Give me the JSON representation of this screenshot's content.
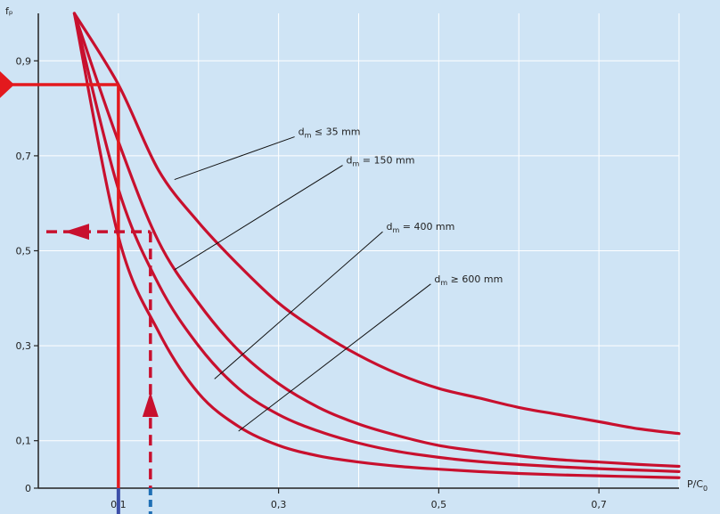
{
  "chart_data": {
    "type": "line",
    "ylabel": "fₚ",
    "xlabel": "P/C",
    "xlabel_sub": "0",
    "xlim": [
      0.0,
      0.8
    ],
    "ylim": [
      0.0,
      1.0
    ],
    "grid": true,
    "x_ticks": [
      {
        "value": 0.1,
        "label": "0,1"
      },
      {
        "value": 0.3,
        "label": "0,3"
      },
      {
        "value": 0.5,
        "label": "0,5"
      },
      {
        "value": 0.7,
        "label": "0,7"
      }
    ],
    "y_ticks": [
      {
        "value": 0.0,
        "label": "0"
      },
      {
        "value": 0.1,
        "label": "0,1"
      },
      {
        "value": 0.3,
        "label": "0,3"
      },
      {
        "value": 0.5,
        "label": "0,5"
      },
      {
        "value": 0.7,
        "label": "0,7"
      },
      {
        "value": 0.9,
        "label": "0,9"
      }
    ],
    "series": [
      {
        "name": "dm ≤ 35 mm",
        "label_main": "d",
        "label_sub": "m",
        "label_rest": " ≤ 35 mm",
        "points": [
          [
            0.045,
            1.0
          ],
          [
            0.1,
            0.85
          ],
          [
            0.15,
            0.67
          ],
          [
            0.2,
            0.56
          ],
          [
            0.25,
            0.47
          ],
          [
            0.3,
            0.39
          ],
          [
            0.35,
            0.33
          ],
          [
            0.4,
            0.28
          ],
          [
            0.45,
            0.24
          ],
          [
            0.5,
            0.21
          ],
          [
            0.55,
            0.19
          ],
          [
            0.6,
            0.17
          ],
          [
            0.65,
            0.155
          ],
          [
            0.7,
            0.14
          ],
          [
            0.75,
            0.125
          ],
          [
            0.8,
            0.115
          ]
        ]
      },
      {
        "name": "dm = 150 mm",
        "label_main": "d",
        "label_sub": "m",
        "label_rest": " = 150 mm",
        "points": [
          [
            0.045,
            1.0
          ],
          [
            0.1,
            0.73
          ],
          [
            0.15,
            0.52
          ],
          [
            0.2,
            0.39
          ],
          [
            0.25,
            0.29
          ],
          [
            0.3,
            0.22
          ],
          [
            0.35,
            0.17
          ],
          [
            0.4,
            0.135
          ],
          [
            0.45,
            0.11
          ],
          [
            0.5,
            0.09
          ],
          [
            0.55,
            0.078
          ],
          [
            0.6,
            0.068
          ],
          [
            0.65,
            0.06
          ],
          [
            0.7,
            0.055
          ],
          [
            0.75,
            0.05
          ],
          [
            0.8,
            0.046
          ]
        ]
      },
      {
        "name": "dm = 400 mm",
        "label_main": "d",
        "label_sub": "m",
        "label_rest": " = 400 mm",
        "points": [
          [
            0.045,
            1.0
          ],
          [
            0.1,
            0.63
          ],
          [
            0.15,
            0.43
          ],
          [
            0.2,
            0.3
          ],
          [
            0.25,
            0.21
          ],
          [
            0.3,
            0.155
          ],
          [
            0.35,
            0.12
          ],
          [
            0.4,
            0.095
          ],
          [
            0.45,
            0.077
          ],
          [
            0.5,
            0.065
          ],
          [
            0.55,
            0.056
          ],
          [
            0.6,
            0.05
          ],
          [
            0.65,
            0.045
          ],
          [
            0.7,
            0.041
          ],
          [
            0.75,
            0.038
          ],
          [
            0.8,
            0.035
          ]
        ]
      },
      {
        "name": "dm ≥ 600 mm",
        "label_main": "d",
        "label_sub": "m",
        "label_rest": " ≥ 600 mm",
        "points": [
          [
            0.045,
            1.0
          ],
          [
            0.1,
            0.53
          ],
          [
            0.15,
            0.33
          ],
          [
            0.2,
            0.2
          ],
          [
            0.25,
            0.13
          ],
          [
            0.3,
            0.09
          ],
          [
            0.35,
            0.068
          ],
          [
            0.4,
            0.055
          ],
          [
            0.45,
            0.046
          ],
          [
            0.5,
            0.04
          ],
          [
            0.55,
            0.035
          ],
          [
            0.6,
            0.031
          ],
          [
            0.65,
            0.028
          ],
          [
            0.7,
            0.026
          ],
          [
            0.75,
            0.024
          ],
          [
            0.8,
            0.022
          ]
        ]
      }
    ],
    "annotations": [
      {
        "label_index": 0,
        "leader_from": [
          0.17,
          0.65
        ],
        "leader_to": [
          0.32,
          0.74
        ]
      },
      {
        "label_index": 1,
        "leader_from": [
          0.17,
          0.46
        ],
        "leader_to": [
          0.38,
          0.68
        ]
      },
      {
        "label_index": 2,
        "leader_from": [
          0.22,
          0.23
        ],
        "leader_to": [
          0.43,
          0.54
        ]
      },
      {
        "label_index": 3,
        "leader_from": [
          0.25,
          0.12
        ],
        "leader_to": [
          0.49,
          0.43
        ]
      }
    ],
    "example_solid": {
      "x": 0.1,
      "y": 0.85
    },
    "example_dashed": {
      "x": 0.14,
      "y": 0.54
    },
    "colors": {
      "background": "#cfe4f5",
      "grid": "#ffffff",
      "curve": "#c8102e",
      "example_solid": "#e3191e",
      "example_dashed": "#c8102e",
      "marker_solid_x": "#3d4fa8",
      "marker_dashed_x": "#1f6fb5",
      "axis": "#222222"
    }
  }
}
